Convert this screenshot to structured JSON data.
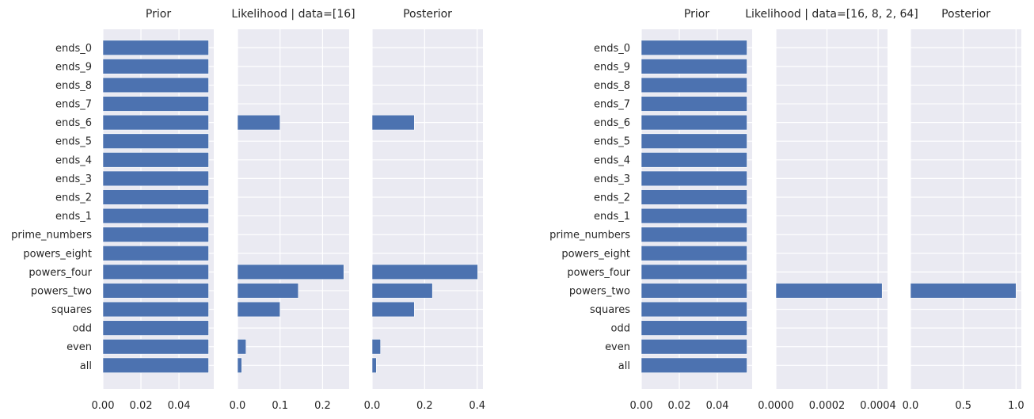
{
  "chart_data": [
    {
      "type": "bar",
      "orientation": "horizontal",
      "title": "Prior",
      "categories": [
        "all",
        "even",
        "odd",
        "squares",
        "powers_two",
        "powers_four",
        "powers_eight",
        "prime_numbers",
        "ends_1",
        "ends_2",
        "ends_3",
        "ends_4",
        "ends_5",
        "ends_6",
        "ends_7",
        "ends_8",
        "ends_9",
        "ends_0"
      ],
      "values": [
        0.0556,
        0.0556,
        0.0556,
        0.0556,
        0.0556,
        0.0556,
        0.0556,
        0.0556,
        0.0556,
        0.0556,
        0.0556,
        0.0556,
        0.0556,
        0.0556,
        0.0556,
        0.0556,
        0.0556,
        0.0556
      ],
      "xlim": [
        0,
        0.0583
      ],
      "xticks": [
        0,
        0.02,
        0.04
      ],
      "xtick_labels": [
        "0.00",
        "0.02",
        "0.04"
      ],
      "grid": true
    },
    {
      "type": "bar",
      "orientation": "horizontal",
      "title": "Likelihood | data=[16]",
      "categories": [
        "all",
        "even",
        "odd",
        "squares",
        "powers_two",
        "powers_four",
        "powers_eight",
        "prime_numbers",
        "ends_1",
        "ends_2",
        "ends_3",
        "ends_4",
        "ends_5",
        "ends_6",
        "ends_7",
        "ends_8",
        "ends_9",
        "ends_0"
      ],
      "values": [
        0.01,
        0.02,
        0,
        0.1,
        0.143,
        0.25,
        0,
        0,
        0,
        0,
        0,
        0,
        0,
        0.1,
        0,
        0,
        0,
        0
      ],
      "xlim": [
        0,
        0.2625
      ],
      "xticks": [
        0,
        0.1,
        0.2
      ],
      "xtick_labels": [
        "0.0",
        "0.1",
        "0.2"
      ],
      "grid": true
    },
    {
      "type": "bar",
      "orientation": "horizontal",
      "title": "Posterior",
      "categories": [
        "all",
        "even",
        "odd",
        "squares",
        "powers_two",
        "powers_four",
        "powers_eight",
        "prime_numbers",
        "ends_1",
        "ends_2",
        "ends_3",
        "ends_4",
        "ends_5",
        "ends_6",
        "ends_7",
        "ends_8",
        "ends_9",
        "ends_0"
      ],
      "values": [
        0.0161,
        0.0322,
        0,
        0.1608,
        0.2297,
        0.4021,
        0,
        0,
        0,
        0,
        0,
        0,
        0,
        0.1608,
        0,
        0,
        0,
        0
      ],
      "xlim": [
        0,
        0.422
      ],
      "xticks": [
        0,
        0.2,
        0.4
      ],
      "xtick_labels": [
        "0.0",
        "0.2",
        "0.4"
      ],
      "grid": true
    },
    {
      "type": "bar",
      "orientation": "horizontal",
      "title": "Prior",
      "categories": [
        "all",
        "even",
        "odd",
        "squares",
        "powers_two",
        "powers_four",
        "powers_eight",
        "prime_numbers",
        "ends_1",
        "ends_2",
        "ends_3",
        "ends_4",
        "ends_5",
        "ends_6",
        "ends_7",
        "ends_8",
        "ends_9",
        "ends_0"
      ],
      "values": [
        0.0556,
        0.0556,
        0.0556,
        0.0556,
        0.0556,
        0.0556,
        0.0556,
        0.0556,
        0.0556,
        0.0556,
        0.0556,
        0.0556,
        0.0556,
        0.0556,
        0.0556,
        0.0556,
        0.0556,
        0.0556
      ],
      "xlim": [
        0,
        0.0583
      ],
      "xticks": [
        0,
        0.02,
        0.04
      ],
      "xtick_labels": [
        "0.00",
        "0.02",
        "0.04"
      ],
      "grid": true
    },
    {
      "type": "bar",
      "orientation": "horizontal",
      "title": "Likelihood | data=[16, 8, 2, 64]",
      "categories": [
        "all",
        "even",
        "odd",
        "squares",
        "powers_two",
        "powers_four",
        "powers_eight",
        "prime_numbers",
        "ends_1",
        "ends_2",
        "ends_3",
        "ends_4",
        "ends_5",
        "ends_6",
        "ends_7",
        "ends_8",
        "ends_9",
        "ends_0"
      ],
      "values": [
        0,
        0,
        0,
        0,
        0.000416,
        0,
        0,
        0,
        0,
        0,
        0,
        0,
        0,
        0,
        0,
        0,
        0,
        0
      ],
      "xlim": [
        0,
        0.000437
      ],
      "xticks": [
        0,
        0.0002,
        0.0004
      ],
      "xtick_labels": [
        "0.0000",
        "0.0002",
        "0.0004"
      ],
      "grid": true
    },
    {
      "type": "bar",
      "orientation": "horizontal",
      "title": "Posterior",
      "categories": [
        "all",
        "even",
        "odd",
        "squares",
        "powers_two",
        "powers_four",
        "powers_eight",
        "prime_numbers",
        "ends_1",
        "ends_2",
        "ends_3",
        "ends_4",
        "ends_5",
        "ends_6",
        "ends_7",
        "ends_8",
        "ends_9",
        "ends_0"
      ],
      "values": [
        0,
        0,
        0,
        0,
        1.0,
        0,
        0,
        0,
        0,
        0,
        0,
        0,
        0,
        0,
        0,
        0,
        0,
        0
      ],
      "xlim": [
        0,
        1.05
      ],
      "xticks": [
        0,
        0.5,
        1.0
      ],
      "xtick_labels": [
        "0.0",
        "0.5",
        "1.0"
      ],
      "grid": true
    }
  ],
  "colors": {
    "bar": "#4c72b0",
    "axes_bg": "#eaeaf2",
    "grid": "#ffffff",
    "text": "#262626"
  }
}
